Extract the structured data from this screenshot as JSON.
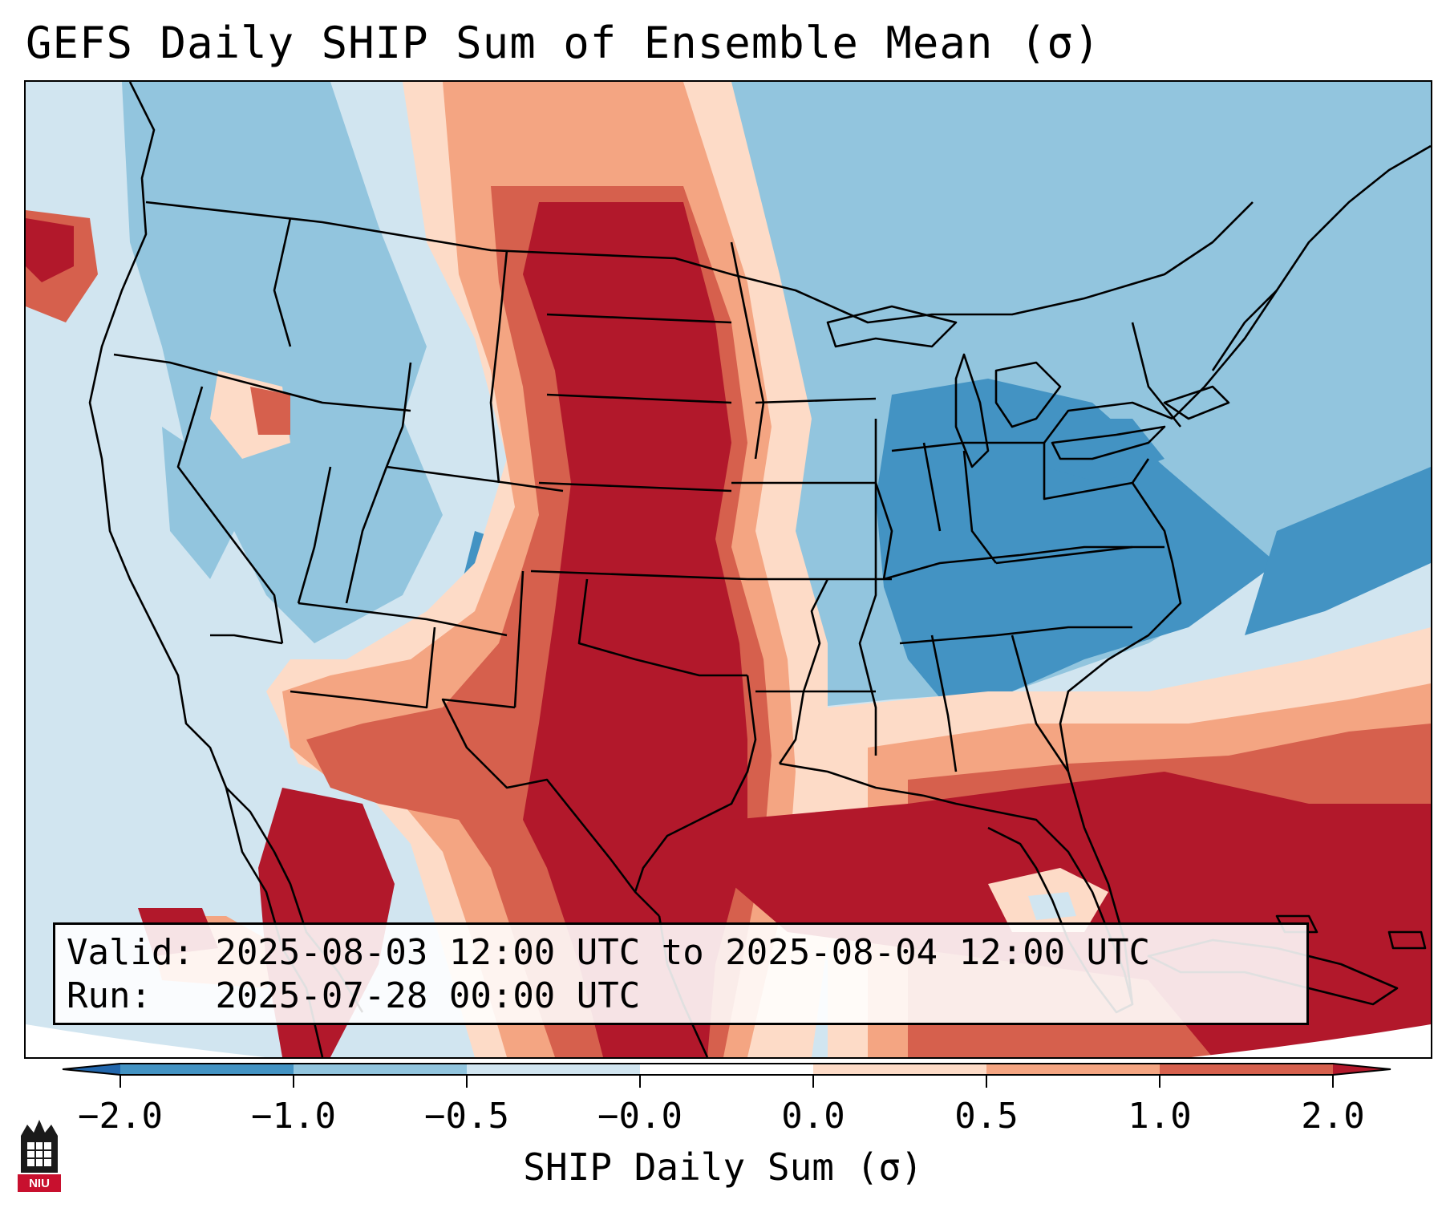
{
  "title": "GEFS Daily SHIP Sum of Ensemble Mean (σ)",
  "info": {
    "valid_label": "Valid:",
    "valid_value": "2025-08-03 12:00 UTC to 2025-08-04 12:00 UTC",
    "run_label": "Run:  ",
    "run_value": "2025-07-28 00:00 UTC"
  },
  "colorbar": {
    "label": "SHIP Daily Sum (σ)",
    "ticks": [
      "−2.0",
      "−1.0",
      "−0.5",
      "−0.0",
      "0.0",
      "0.5",
      "1.0",
      "2.0"
    ],
    "colors": [
      "#2166ac",
      "#4393c3",
      "#92c5de",
      "#d1e5f0",
      "#ffffff",
      "#fddbc7",
      "#f4a582",
      "#d6604d",
      "#b2182b"
    ],
    "extend": "both"
  },
  "logo": {
    "text": "NIU",
    "color": "#c8102e"
  },
  "map": {
    "projection": "Lambert conformal",
    "region": "Contiguous United States and adjacent Mexico, Canada, Gulf of Mexico, Caribbean"
  }
}
